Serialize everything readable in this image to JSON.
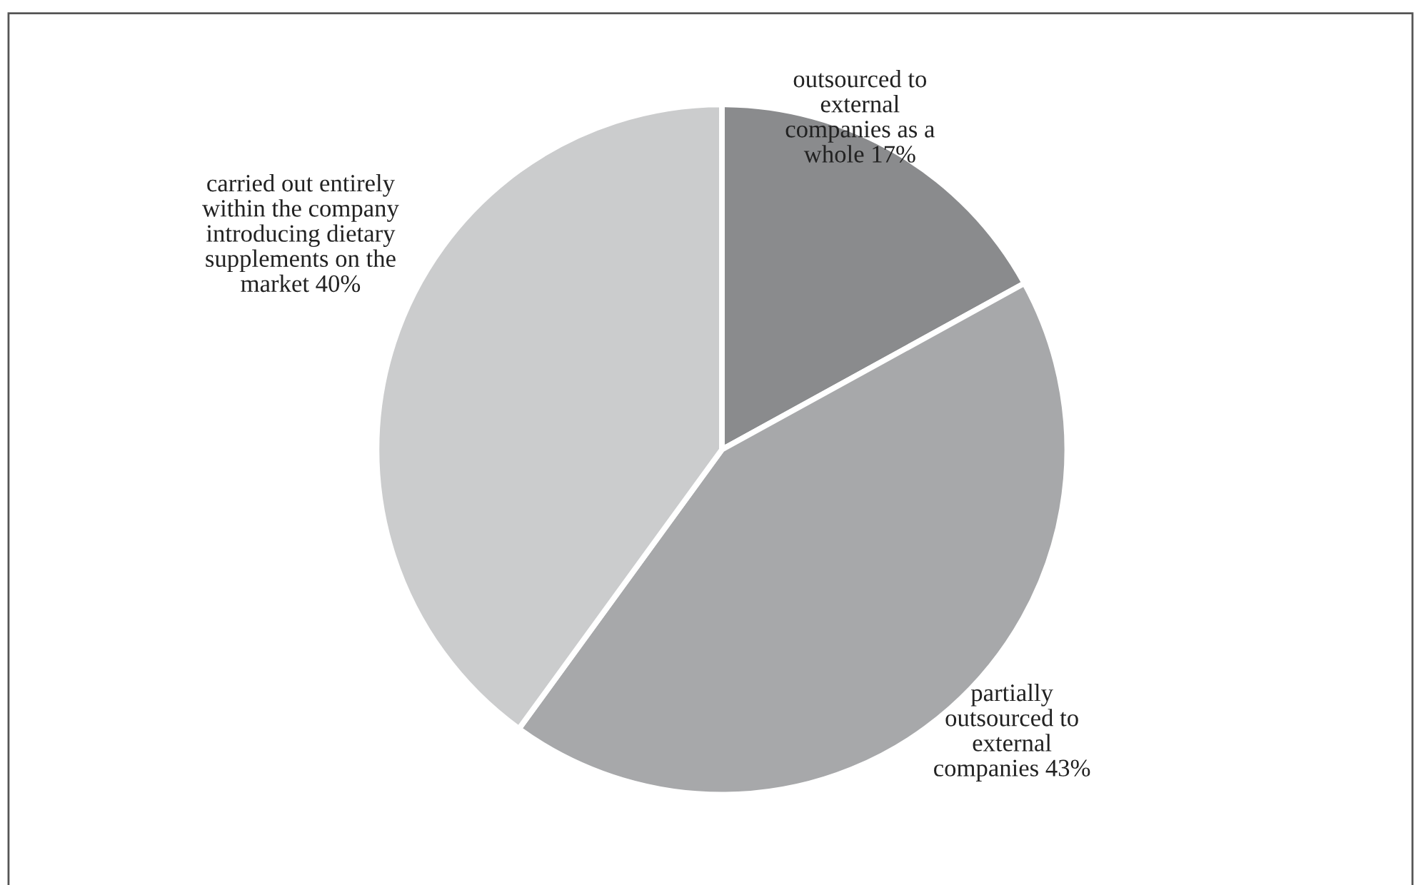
{
  "chart_data": {
    "type": "pie",
    "categories": [
      "outsourced to external companies as a whole",
      "partially outsourced to external companies",
      "carried out entirely within the company introducing dietary supplements on the market"
    ],
    "values": [
      17,
      43,
      40
    ],
    "value_labels": [
      "17%",
      "43%",
      "40%"
    ],
    "colors": [
      "#8a8b8d",
      "#a7a8aa",
      "#cbcccd"
    ]
  }
}
